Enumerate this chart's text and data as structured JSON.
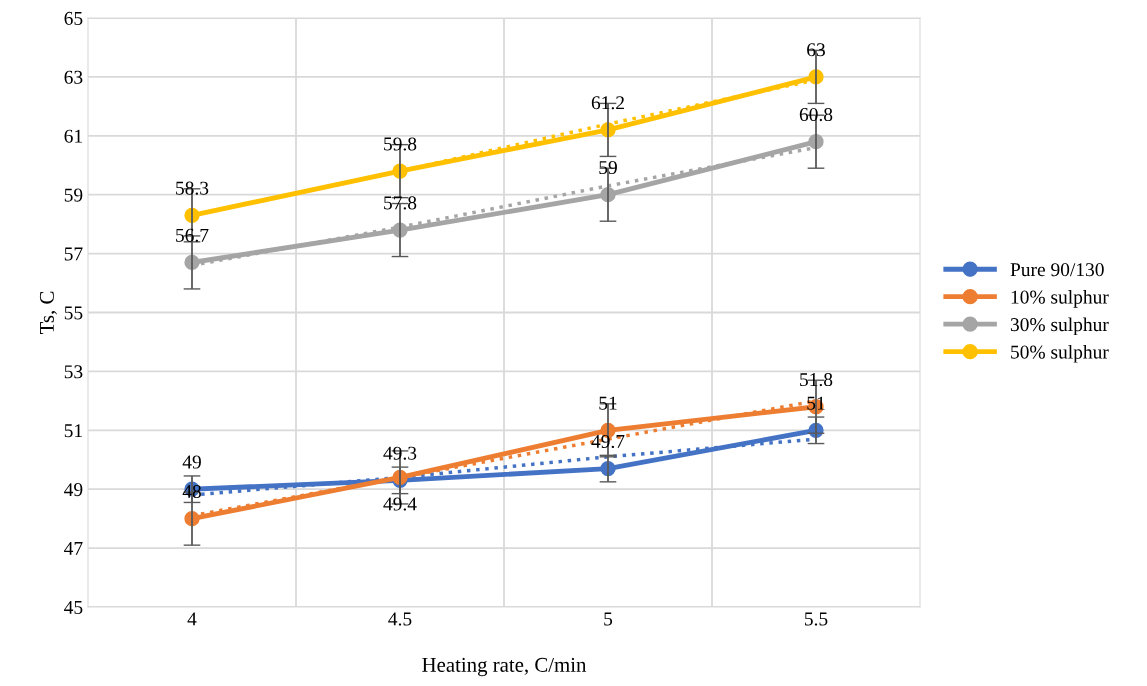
{
  "chart_data": {
    "type": "line",
    "xlabel": "Heating rate, C/min",
    "ylabel": "Ts, C",
    "categories": [
      "4",
      "4.5",
      "5",
      "5.5"
    ],
    "ylim": [
      45,
      65
    ],
    "yticks": [
      45,
      47,
      49,
      51,
      53,
      55,
      57,
      59,
      61,
      63,
      65
    ],
    "grid": true,
    "legend": "right",
    "marker": "circle",
    "data_labels": true,
    "series": [
      {
        "name": "Pure 90/130",
        "color": "#4472c4",
        "values": [
          49,
          49.3,
          49.7,
          51
        ],
        "errors": [
          0.45,
          0.45,
          0.45,
          0.45
        ]
      },
      {
        "name": "10% sulphur",
        "color": "#ed7d31",
        "values": [
          48,
          49.4,
          51,
          51.8
        ],
        "errors": [
          0.9,
          0.9,
          0.9,
          0.9
        ]
      },
      {
        "name": "30% sulphur",
        "color": "#a5a5a5",
        "values": [
          56.7,
          57.8,
          59,
          60.8
        ],
        "errors": [
          0.9,
          0.9,
          0.9,
          0.9
        ]
      },
      {
        "name": "50% sulphur",
        "color": "#ffc000",
        "values": [
          58.3,
          59.8,
          61.2,
          63
        ],
        "errors": [
          0.9,
          0.9,
          0.9,
          0.9
        ]
      },
      {
        "type": "line",
        "color": "#4472c4",
        "line_style": "dotted",
        "marker": "none",
        "values": [
          48.8,
          49.4,
          50.1,
          50.7
        ],
        "value_labels": [
          null,
          null,
          null,
          null
        ]
      },
      {
        "type": "line",
        "color": "#ed7d31",
        "line_style": "dotted",
        "marker": "none",
        "values": [
          48.1,
          49.4,
          50.7,
          52.0
        ],
        "value_labels": [
          null,
          null,
          null,
          null
        ]
      },
      {
        "type": "line",
        "color": "#a5a5a5",
        "line_style": "dotted",
        "marker": "none",
        "values": [
          56.6,
          57.9,
          59.3,
          60.6
        ],
        "value_labels": [
          null,
          null,
          null,
          null
        ]
      },
      {
        "type": "line",
        "color": "#ffc000",
        "line_style": "dotted",
        "marker": "none",
        "values": [
          58.3,
          59.8,
          61.4,
          62.9
        ],
        "value_labels": [
          null,
          null,
          null,
          null
        ]
      }
    ]
  }
}
